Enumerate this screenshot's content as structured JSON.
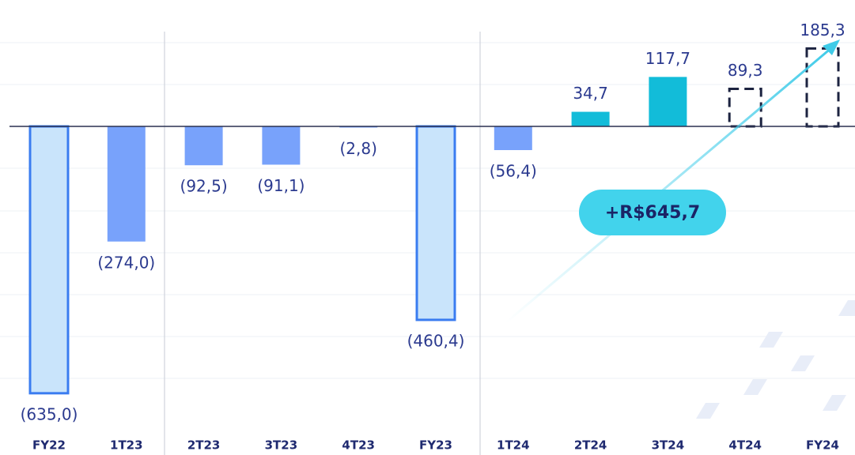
{
  "chart_data": {
    "type": "bar",
    "categories": [
      "FY22",
      "1T23",
      "2T23",
      "3T23",
      "4T23",
      "FY23",
      "1T24",
      "2T24",
      "3T24",
      "4T24",
      "FY24"
    ],
    "values": [
      -635.0,
      -274.0,
      -92.5,
      -91.1,
      -2.8,
      -460.4,
      -56.4,
      34.7,
      117.7,
      89.3,
      185.3
    ],
    "value_labels": [
      "(635,0)",
      "(274,0)",
      "(92,5)",
      "(91,1)",
      "(2,8)",
      "(460,4)",
      "(56,4)",
      "34,7",
      "117,7",
      "89,3",
      "185,3"
    ],
    "colors": [
      "#c9e4fb",
      "#78a2fb",
      "#78a2fb",
      "#78a2fb",
      "#78a2fb",
      "#c9e4fb",
      "#78a2fb",
      "#12bcd9",
      "#12bcd9",
      "none",
      "none"
    ],
    "edge_colors": [
      "#3a7cf0",
      "none",
      "none",
      "none",
      "none",
      "#3a7cf0",
      "none",
      "none",
      "none",
      "#1c2340",
      "#1c2340"
    ],
    "ylim": [
      -700,
      300
    ],
    "annotation": "+R$645,7"
  }
}
